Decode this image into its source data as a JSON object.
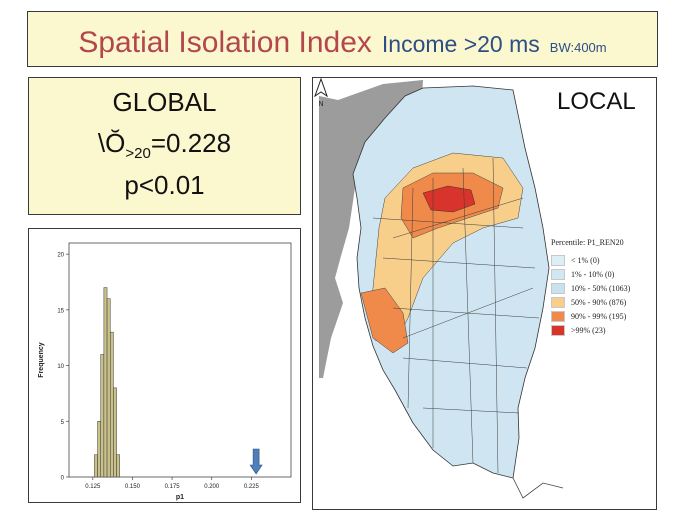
{
  "title": {
    "main": "Spatial Isolation Index",
    "sub": "Income >20 ms",
    "bandwidth": "BW:400m"
  },
  "global": {
    "heading": "GLOBAL",
    "stat_symbol": "\\Ŏ",
    "stat_subscript": ">20",
    "stat_value": "=0.228",
    "p_value": "p<0.01"
  },
  "local": {
    "label": "LOCAL",
    "legend_title": "Percentile: P1_REN20",
    "legend": [
      {
        "label": "< 1% (0)",
        "color": "#dceff7"
      },
      {
        "label": "1% - 10% (0)",
        "color": "#cfe8f3"
      },
      {
        "label": "10% - 50% (1063)",
        "color": "#c8e3ef"
      },
      {
        "label": "50% - 90% (876)",
        "color": "#f7ce8a"
      },
      {
        "label": "90% - 99% (195)",
        "color": "#f08a4b"
      },
      {
        "label": ">99% (23)",
        "color": "#d9342b"
      }
    ],
    "north_label": "N"
  },
  "chart_data": {
    "type": "bar",
    "subtype": "histogram",
    "xlabel": "p1",
    "ylabel": "Frequency",
    "xlim": [
      0.11,
      0.25
    ],
    "ylim": [
      0,
      21
    ],
    "xticks": [
      "0.125",
      "0.150",
      "0.175",
      "0.200",
      "0.225"
    ],
    "xtick_values": [
      0.125,
      0.15,
      0.175,
      0.2,
      0.225
    ],
    "yticks": [
      0,
      5,
      10,
      15,
      20
    ],
    "bin_width": 0.002,
    "bins": [
      0.127,
      0.129,
      0.131,
      0.133,
      0.135,
      0.137,
      0.139,
      0.141
    ],
    "values": [
      2,
      5,
      11,
      17,
      16,
      13,
      8,
      2
    ],
    "bar_color": "#c9c08a",
    "annotation": {
      "type": "arrow",
      "x": 0.228,
      "color": "#4f7fb8"
    }
  },
  "colors": {
    "title_red": "#b4464e",
    "title_blue": "#2d4f86",
    "panel_fill": "#fbf7cf"
  }
}
